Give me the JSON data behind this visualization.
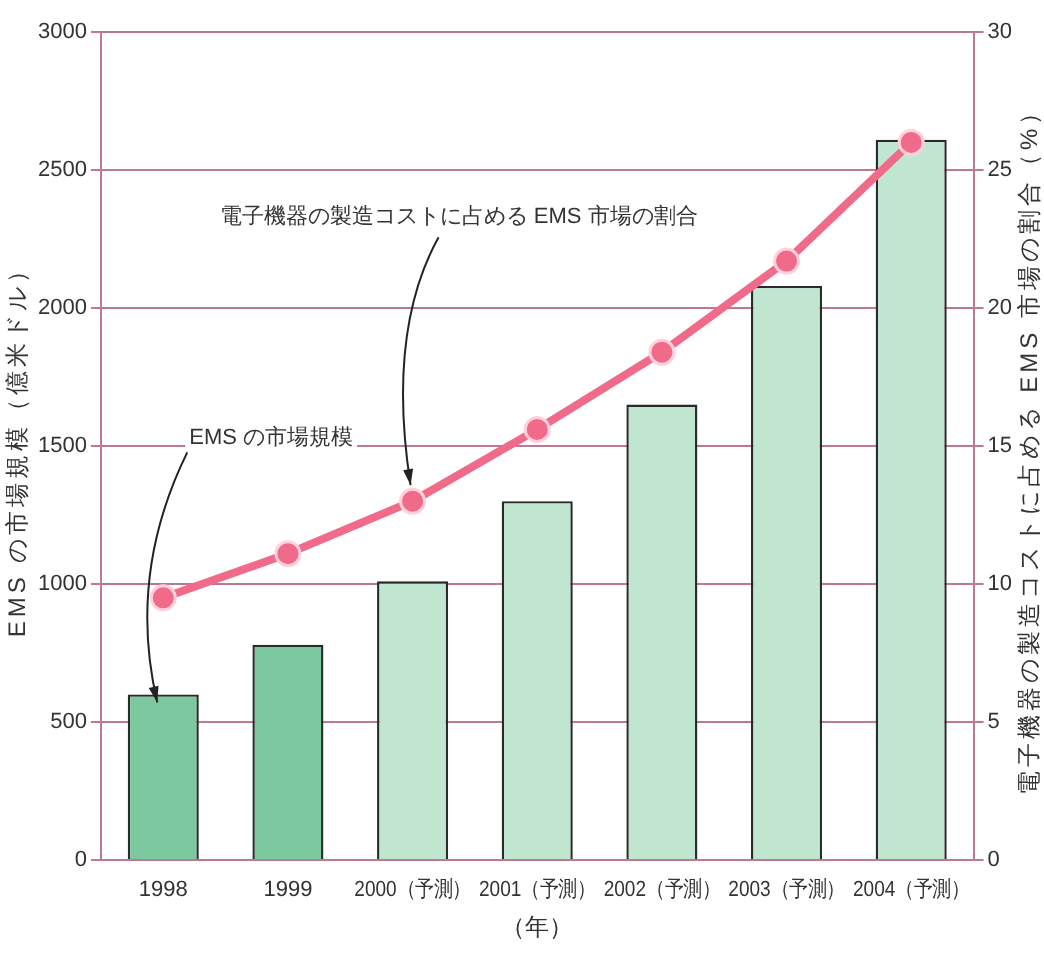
{
  "chart_data": {
    "type": "bar",
    "categories": [
      "1998",
      "1999",
      "2000（予測）",
      "2001（予測）",
      "2002（予測）",
      "2003（予測）",
      "2004（予測）"
    ],
    "xlabel": "（年）",
    "ylabel": "EMS の市場規模（億米ドル）",
    "y2label": "電子機器の製造コストに占める EMS 市場の割合（%）",
    "series": [
      {
        "name": "EMS の市場規模",
        "colors": [
          "#7cc9a0",
          "#7cc9a0",
          "#c0e6d0",
          "#c0e6d0",
          "#c0e6d0",
          "#c0e6d0",
          "#c0e6d0"
        ],
        "values": [
          600,
          780,
          1010,
          1300,
          1650,
          2080,
          2610
        ]
      },
      {
        "name": "電子機器の製造コストに占める EMS 市場の割合",
        "type": "line",
        "axis": "y2",
        "color": "#f06a8a",
        "values": [
          9.5,
          11.1,
          13.0,
          15.6,
          18.4,
          21.7,
          26.0
        ]
      }
    ],
    "ylim": [
      0,
      3000
    ],
    "yticks": [
      0,
      500,
      1000,
      1500,
      2000,
      2500,
      3000
    ],
    "y2lim": [
      0,
      30
    ],
    "y2ticks": [
      0,
      5,
      10,
      15,
      20,
      25,
      30
    ],
    "grid": "y",
    "marker": "circle",
    "legend": false
  }
}
